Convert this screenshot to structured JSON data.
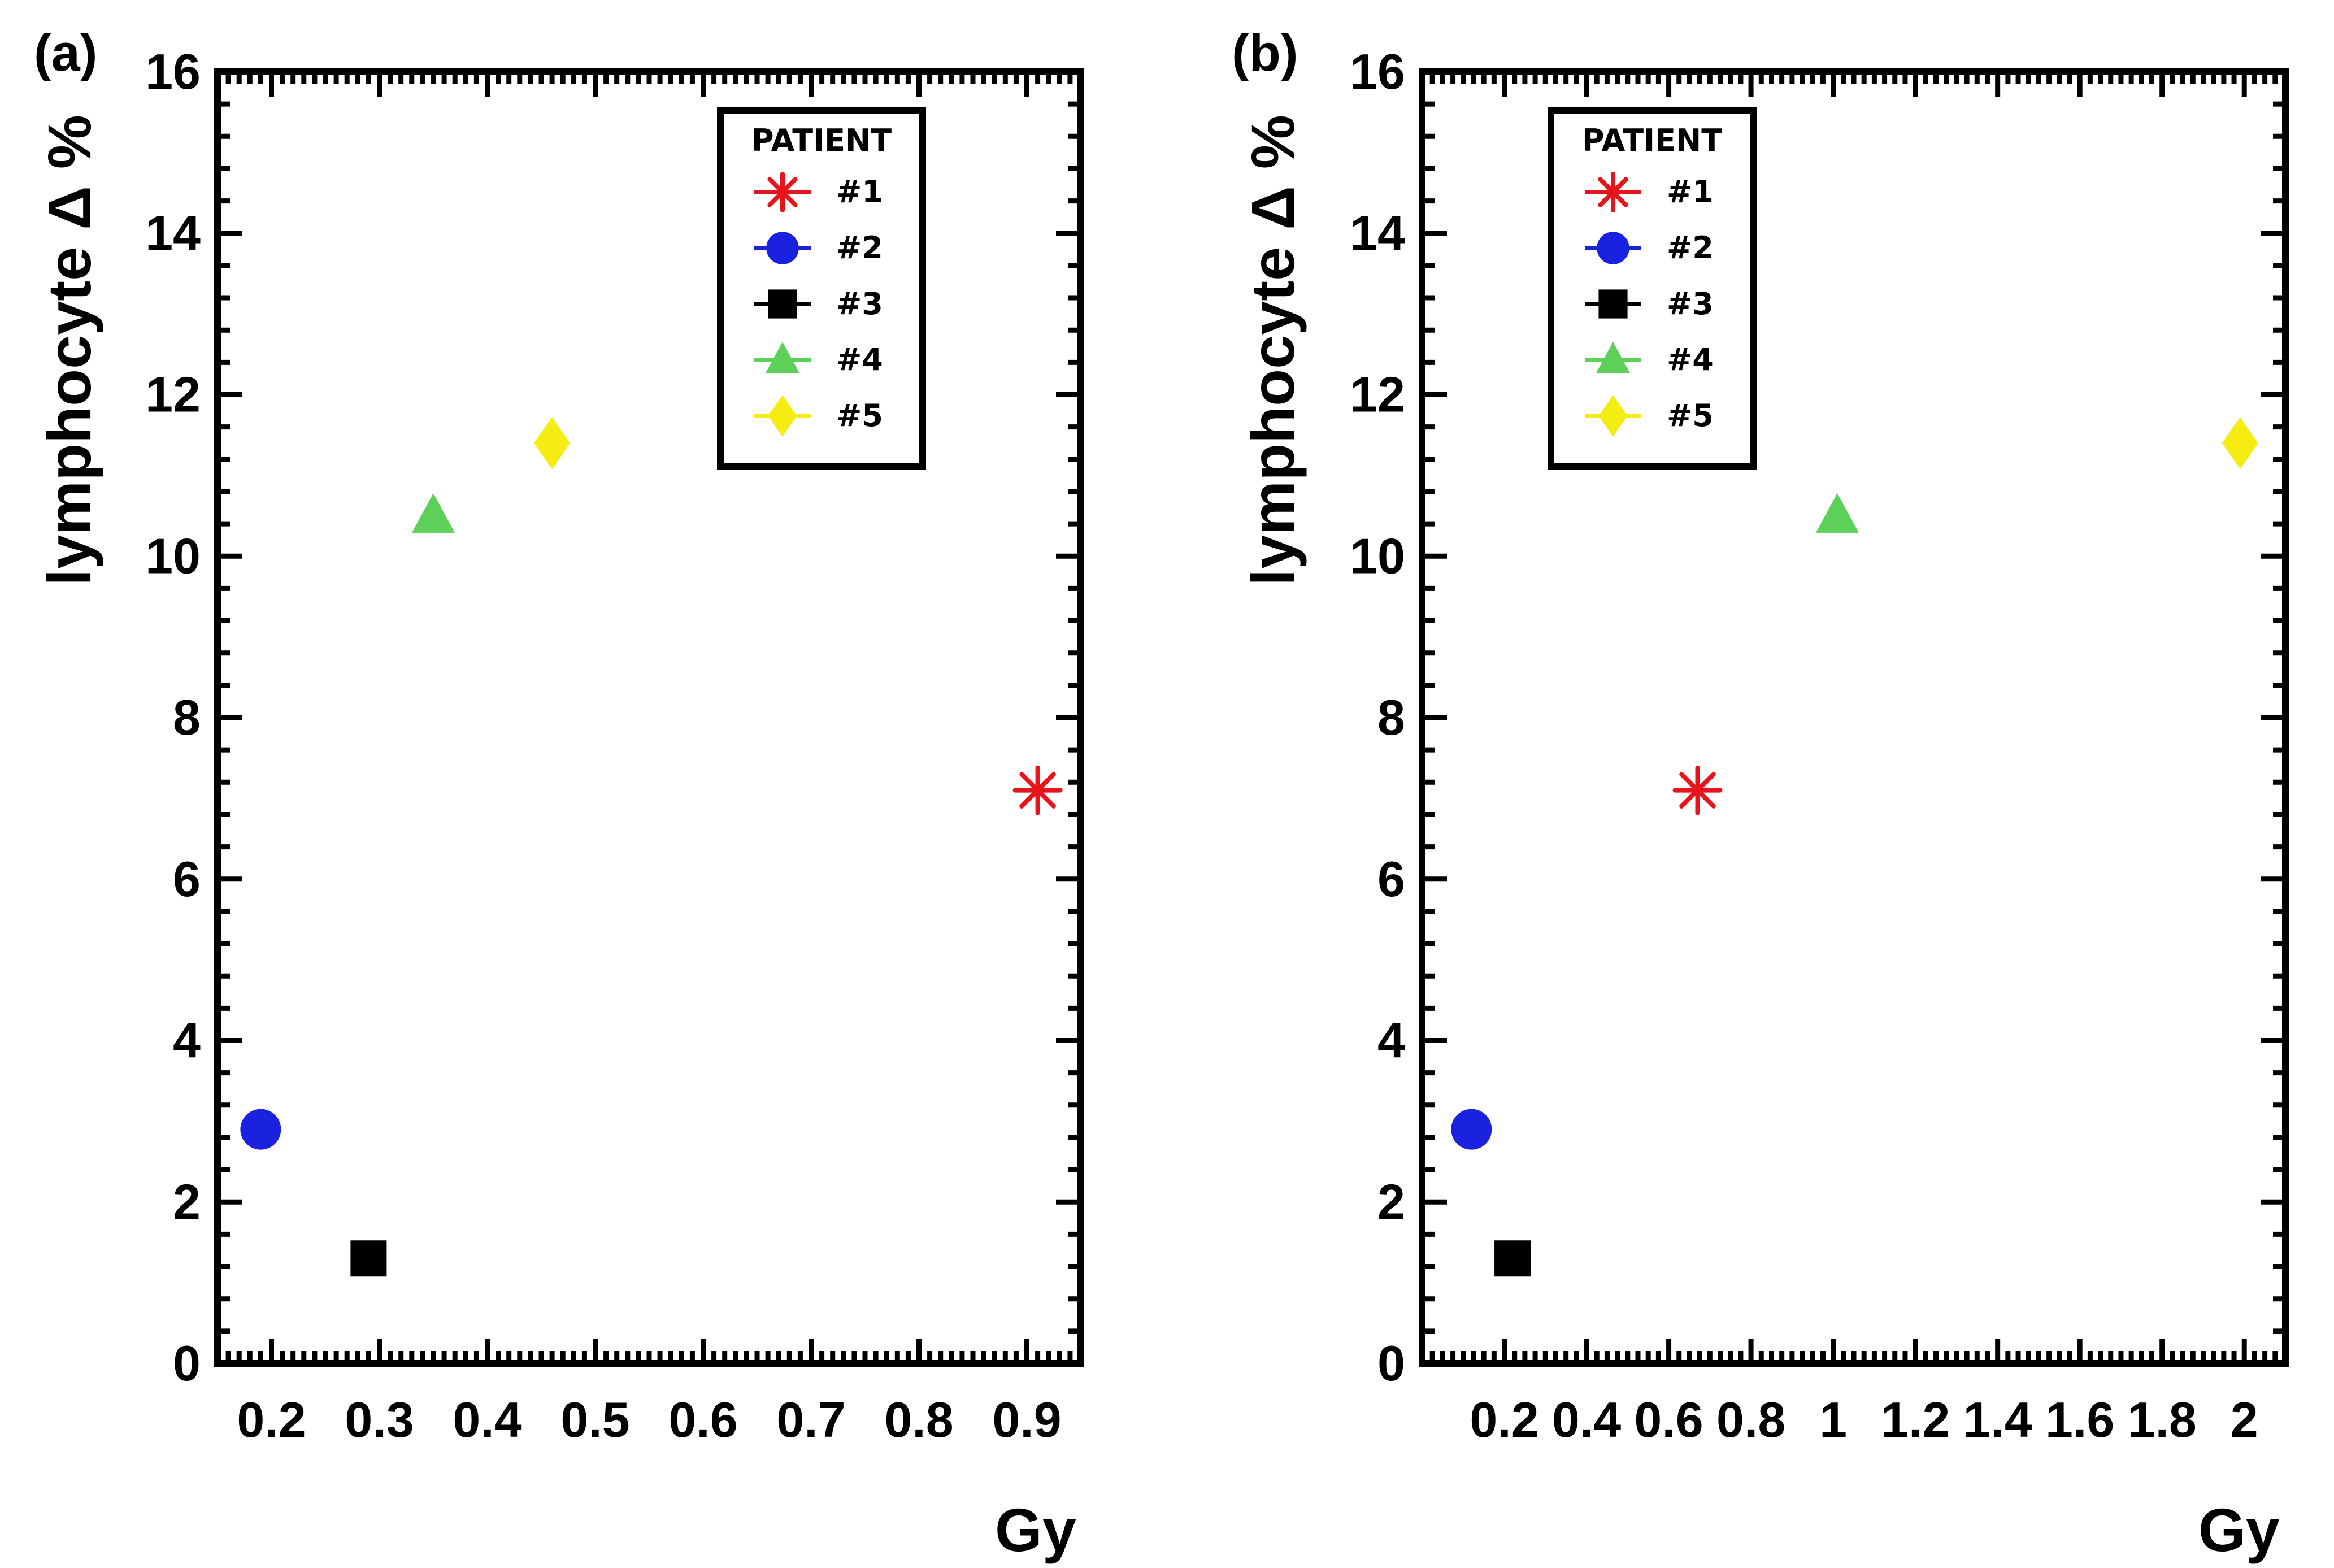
{
  "chart_data": [
    {
      "type": "scatter",
      "panel_label": "(a)",
      "xlabel": "Gy",
      "ylabel": "lymphocyte",
      "ylabel_symbol": "Δ %",
      "xlim": [
        0.15,
        0.95
      ],
      "ylim": [
        0,
        16
      ],
      "x_ticks": [
        "0.2",
        "0.3",
        "0.4",
        "0.5",
        "0.6",
        "0.7",
        "0.8",
        "0.9"
      ],
      "y_ticks": [
        "0",
        "2",
        "4",
        "6",
        "8",
        "10",
        "12",
        "14",
        "16"
      ],
      "legend": {
        "title": "PATIENT",
        "position": "top-right"
      },
      "series": [
        {
          "name": "#1",
          "x": 0.91,
          "y": 7.1,
          "marker": "asterisk",
          "color": "#e8141c"
        },
        {
          "name": "#2",
          "x": 0.19,
          "y": 2.9,
          "marker": "circle",
          "color": "#1a22e0"
        },
        {
          "name": "#3",
          "x": 0.29,
          "y": 1.3,
          "marker": "square",
          "color": "#000000"
        },
        {
          "name": "#4",
          "x": 0.35,
          "y": 10.5,
          "marker": "triangle",
          "color": "#5dd05a"
        },
        {
          "name": "#5",
          "x": 0.46,
          "y": 11.4,
          "marker": "diamond",
          "color": "#f5ec12"
        }
      ]
    },
    {
      "type": "scatter",
      "panel_label": "(b)",
      "xlabel": "Gy",
      "ylabel": "lymphocyte",
      "ylabel_symbol": "Δ %",
      "xlim": [
        0.0,
        2.1
      ],
      "ylim": [
        0,
        16
      ],
      "x_ticks": [
        "0.2",
        "0.4",
        "0.6",
        "0.8",
        "1",
        "1.2",
        "1.4",
        "1.6",
        "1.8",
        "2"
      ],
      "y_ticks": [
        "0",
        "2",
        "4",
        "6",
        "8",
        "10",
        "12",
        "14",
        "16"
      ],
      "legend": {
        "title": "PATIENT",
        "position": "top-left"
      },
      "series": [
        {
          "name": "#1",
          "x": 0.67,
          "y": 7.1,
          "marker": "asterisk",
          "color": "#e8141c"
        },
        {
          "name": "#2",
          "x": 0.12,
          "y": 2.9,
          "marker": "circle",
          "color": "#1a22e0"
        },
        {
          "name": "#3",
          "x": 0.22,
          "y": 1.3,
          "marker": "square",
          "color": "#000000"
        },
        {
          "name": "#4",
          "x": 1.01,
          "y": 10.5,
          "marker": "triangle",
          "color": "#5dd05a"
        },
        {
          "name": "#5",
          "x": 1.99,
          "y": 11.4,
          "marker": "diamond",
          "color": "#f5ec12"
        }
      ]
    }
  ]
}
